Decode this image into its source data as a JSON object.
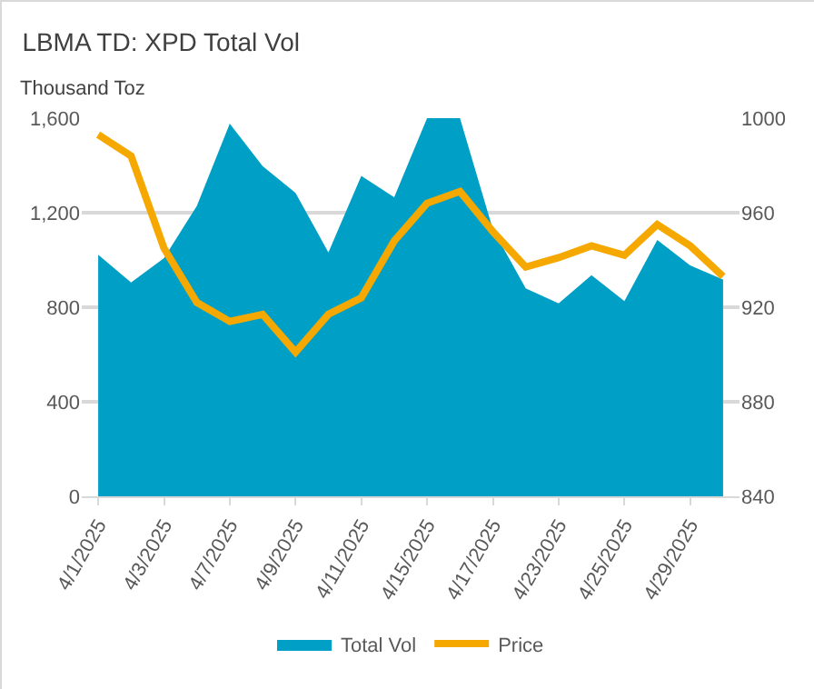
{
  "chart_data": {
    "type": "area",
    "title": "LBMA TD: XPD Total Vol",
    "ylabel": "Thousand Toz",
    "categories": [
      "4/1/2025",
      null,
      "4/3/2025",
      null,
      "4/7/2025",
      null,
      "4/9/2025",
      null,
      "4/11/2025",
      null,
      "4/15/2025",
      null,
      "4/17/2025",
      null,
      "4/23/2025",
      null,
      "4/25/2025",
      null,
      "4/29/2025",
      null
    ],
    "series": [
      {
        "name": "Total Vol",
        "color": "#009fc6",
        "values": [
          1022,
          905,
          1008,
          1229,
          1577,
          1397,
          1284,
          1032,
          1356,
          1265,
          1600,
          1600,
          1130,
          880,
          816,
          936,
          826,
          1085,
          977,
          917
        ]
      },
      {
        "name": "Price",
        "type": "line",
        "axis": "y2",
        "color": "#f5a800",
        "values": [
          993,
          984,
          945,
          922,
          914,
          917,
          901,
          917,
          924,
          948,
          964,
          969,
          952,
          937,
          941,
          946,
          942,
          955,
          946,
          933
        ]
      }
    ],
    "ylim": [
      0,
      1600
    ],
    "yticks": [
      0,
      400,
      800,
      {
        "value": 1200,
        "label": "1,200"
      },
      {
        "value": 1600,
        "label": "1,600"
      }
    ],
    "y2lim": [
      840,
      1000
    ],
    "y2ticks": [
      840,
      880,
      920,
      960,
      1000
    ],
    "grid": "y",
    "legend": "bottom"
  }
}
